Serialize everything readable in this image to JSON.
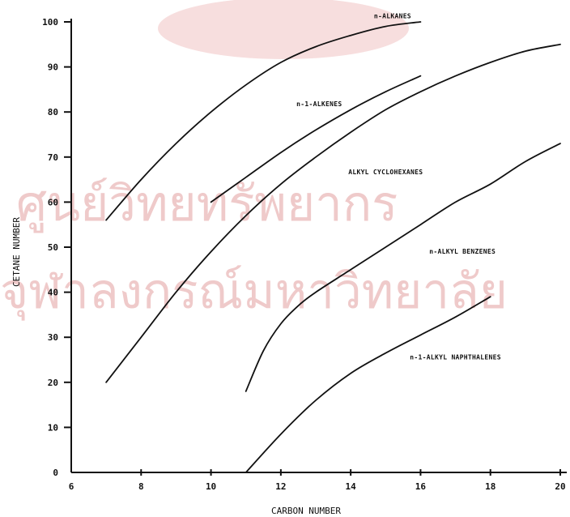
{
  "chart_data": {
    "type": "line",
    "title": "",
    "xlabel": "CARBON NUMBER",
    "ylabel": "CETANE NUMBER",
    "xlim": [
      6,
      20
    ],
    "ylim": [
      0,
      100
    ],
    "x_ticks": [
      "6",
      "8",
      "10",
      "12",
      "14",
      "16",
      "18",
      "20"
    ],
    "y_ticks": [
      "0",
      "10",
      "20",
      "30",
      "40",
      "50",
      "60",
      "70",
      "80",
      "90",
      "100"
    ],
    "grid": false,
    "series": [
      {
        "name": "n-ALKANES",
        "x": [
          7,
          8,
          9,
          10,
          11,
          12,
          13,
          14,
          15,
          16
        ],
        "y": [
          56,
          65,
          73,
          80,
          86,
          91,
          94.5,
          97,
          99,
          100
        ]
      },
      {
        "name": "n-1-ALKENES",
        "x": [
          10,
          11,
          12,
          13,
          14,
          15,
          16
        ],
        "y": [
          60,
          65.5,
          71,
          76,
          80.5,
          84.5,
          88
        ]
      },
      {
        "name": "ALKYL CYCLOHEXANES",
        "x": [
          7,
          8,
          9,
          10,
          11,
          12,
          13,
          14,
          15,
          16,
          17,
          18,
          19,
          20
        ],
        "y": [
          20,
          30,
          40,
          49,
          57,
          64,
          70,
          75.5,
          80.5,
          84.5,
          88,
          91,
          93.5,
          95
        ]
      },
      {
        "name": "n-ALKYL BENZENES",
        "x": [
          11,
          11.5,
          12,
          12.5,
          13,
          14,
          15,
          16,
          17,
          18,
          19,
          20
        ],
        "y": [
          18,
          27,
          33,
          37,
          40,
          45,
          50,
          55,
          60,
          64,
          69,
          73
        ]
      },
      {
        "name": "n-1-ALKYL NAPHTHALENES",
        "x": [
          11,
          12,
          13,
          14,
          15,
          16,
          17,
          18
        ],
        "y": [
          0,
          8.5,
          16,
          22,
          26.5,
          30.5,
          34.5,
          39
        ]
      }
    ]
  },
  "watermark": {
    "line1": "ศูนย์วิทยทรัพยากร",
    "line2": "จุฬาลงกรณ์มหาวิทยาลัย",
    "color": "#e9b7b7"
  }
}
